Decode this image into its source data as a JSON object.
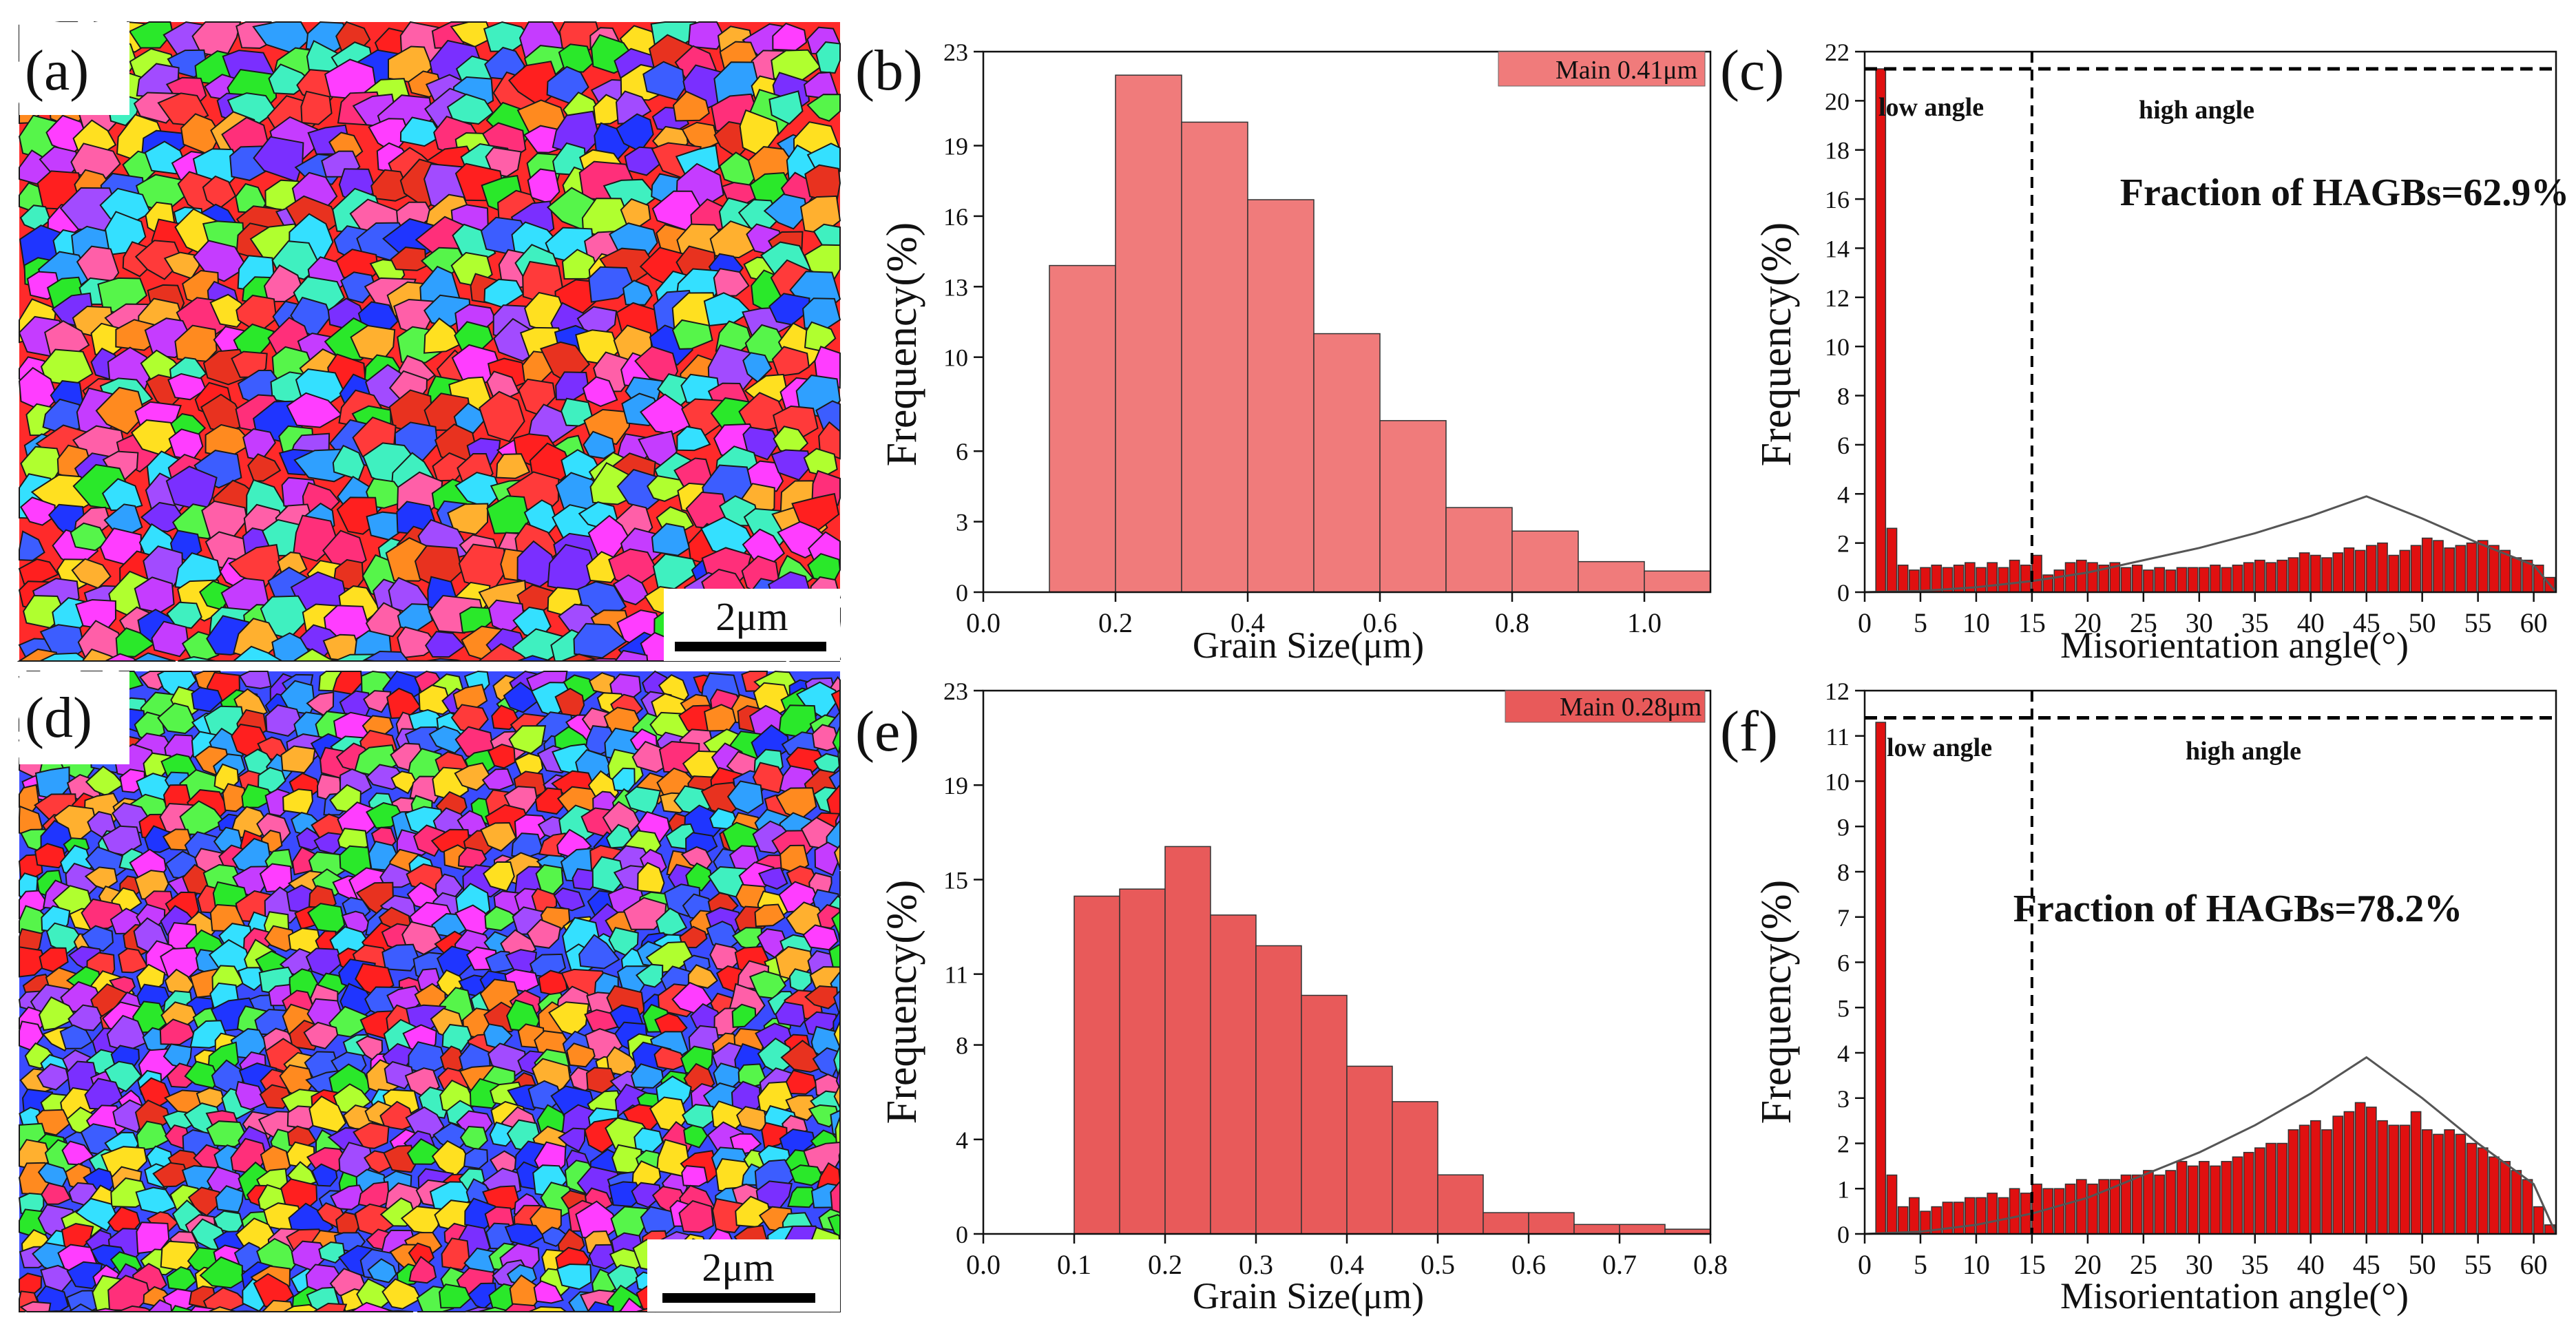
{
  "colors": {
    "bar_b": "#f07b7b",
    "bar_e": "#e85a5a",
    "bar_misorientation": "#e01010",
    "bar_stroke": "#333333",
    "axis": "#111111",
    "mackenzie_curve": "#555555",
    "ipf_palette": [
      "#ff1f1f",
      "#ff3a3a",
      "#e8321f",
      "#2ae82a",
      "#56f54a",
      "#1f35ff",
      "#3c5dff",
      "#ff3dff",
      "#c53cff",
      "#ffe020",
      "#ff8a1f",
      "#34e0ff",
      "#a24bff",
      "#ff5fa8",
      "#ffb02f",
      "#3ff0c0",
      "#ff2f7a",
      "#7a2fff",
      "#2fa0ff",
      "#b0ff2f"
    ]
  },
  "maps": [
    {
      "id": "a",
      "panel_label": "(a)",
      "scale_bar": "2μm"
    },
    {
      "id": "d",
      "panel_label": "(d)",
      "scale_bar": "2μm"
    }
  ],
  "chart_data": [
    {
      "id": "b",
      "panel_label": "(b)",
      "type": "bar",
      "title": "",
      "xlabel": "Grain Size(μm)",
      "ylabel": "Frequency(%)",
      "xlim": [
        0,
        1.1
      ],
      "ylim": [
        0,
        23
      ],
      "xticks": [
        0.0,
        0.2,
        0.4,
        0.6,
        0.8,
        1.0
      ],
      "xtick_labels": [
        "0.0",
        "0.2",
        "0.4",
        "0.6",
        "0.8",
        "1.0"
      ],
      "yticks": [
        0,
        3,
        6,
        10,
        13,
        16,
        19,
        23
      ],
      "ytick_labels": [
        "0",
        "3",
        "6",
        "10",
        "13",
        "16",
        "19",
        "23"
      ],
      "bin_width": 0.1,
      "bins_left": [
        0.0,
        0.1,
        0.2,
        0.3,
        0.4,
        0.5,
        0.6,
        0.7,
        0.8,
        0.9,
        1.0
      ],
      "values": [
        0,
        13.9,
        22.0,
        20.0,
        16.7,
        11.0,
        7.3,
        3.6,
        2.6,
        1.3,
        0.9
      ],
      "legend": "Main 0.41μm",
      "legend_position": "top-right"
    },
    {
      "id": "e",
      "panel_label": "(e)",
      "type": "bar",
      "title": "",
      "xlabel": "Grain Size(μm)",
      "ylabel": "Frequency(%)",
      "xlim": [
        0,
        0.8
      ],
      "ylim": [
        0,
        23
      ],
      "xticks": [
        0.0,
        0.1,
        0.2,
        0.3,
        0.4,
        0.5,
        0.6,
        0.7,
        0.8
      ],
      "xtick_labels": [
        "0.0",
        "0.1",
        "0.2",
        "0.3",
        "0.4",
        "0.5",
        "0.6",
        "0.7",
        "0.8"
      ],
      "yticks": [
        0,
        4,
        8,
        11,
        15,
        19,
        23
      ],
      "ytick_labels": [
        "0",
        "4",
        "8",
        "11",
        "15",
        "19",
        "23"
      ],
      "bin_width": 0.05,
      "bins_left": [
        0.1,
        0.15,
        0.2,
        0.25,
        0.3,
        0.35,
        0.4,
        0.45,
        0.5,
        0.55,
        0.6,
        0.65,
        0.7,
        0.75
      ],
      "values": [
        14.3,
        14.6,
        16.4,
        13.5,
        12.2,
        10.1,
        7.1,
        5.6,
        2.5,
        0.9,
        0.9,
        0.4,
        0.4,
        0.2
      ],
      "legend": "Main 0.28μm",
      "legend_position": "top-right"
    },
    {
      "id": "c",
      "panel_label": "(c)",
      "type": "bar",
      "title": "",
      "xlabel": "Misorientation angle(°)",
      "ylabel": "Frequency(%)",
      "xlim": [
        0,
        62
      ],
      "ylim": [
        0,
        22
      ],
      "xticks": [
        0,
        5,
        10,
        15,
        20,
        25,
        30,
        35,
        40,
        45,
        50,
        55,
        60
      ],
      "xtick_labels": [
        "0",
        "5",
        "10",
        "15",
        "20",
        "25",
        "30",
        "35",
        "40",
        "45",
        "50",
        "55",
        "60"
      ],
      "yticks": [
        0,
        2,
        4,
        6,
        8,
        10,
        12,
        14,
        16,
        18,
        20,
        22
      ],
      "ytick_labels": [
        "0",
        "2",
        "4",
        "6",
        "8",
        "10",
        "12",
        "14",
        "16",
        "18",
        "20",
        "22"
      ],
      "bin_width": 1,
      "bins_left": [
        1,
        2,
        3,
        4,
        5,
        6,
        7,
        8,
        9,
        10,
        11,
        12,
        13,
        14,
        15,
        16,
        17,
        18,
        19,
        20,
        21,
        22,
        23,
        24,
        25,
        26,
        27,
        28,
        29,
        30,
        31,
        32,
        33,
        34,
        35,
        36,
        37,
        38,
        39,
        40,
        41,
        42,
        43,
        44,
        45,
        46,
        47,
        48,
        49,
        50,
        51,
        52,
        53,
        54,
        55,
        56,
        57,
        58,
        59,
        60,
        61
      ],
      "values": [
        21.3,
        2.6,
        1.1,
        0.9,
        1.0,
        1.1,
        1.0,
        1.1,
        1.2,
        1.0,
        1.2,
        1.0,
        1.3,
        1.1,
        1.5,
        0.7,
        0.9,
        1.2,
        1.3,
        1.2,
        1.1,
        1.2,
        1.0,
        1.1,
        0.9,
        1.0,
        0.9,
        1.0,
        1.0,
        1.0,
        1.1,
        1.0,
        1.1,
        1.2,
        1.3,
        1.2,
        1.3,
        1.4,
        1.6,
        1.5,
        1.4,
        1.6,
        1.8,
        1.7,
        1.9,
        2.0,
        1.5,
        1.7,
        1.9,
        2.2,
        2.1,
        1.8,
        1.9,
        2.0,
        2.1,
        1.9,
        1.7,
        1.4,
        1.3,
        1.1,
        0.6
      ],
      "mackenzie_curve": {
        "x": [
          0,
          5,
          10,
          15,
          20,
          25,
          30,
          35,
          40,
          45,
          50,
          55,
          60,
          62
        ],
        "y": [
          0,
          0.05,
          0.2,
          0.45,
          0.8,
          1.3,
          1.8,
          2.4,
          3.1,
          3.9,
          3.0,
          2.0,
          1.1,
          0
        ]
      },
      "threshold_angle": 15,
      "reference_value": 21.3,
      "annotations": [
        "low angle",
        "high angle",
        "Fraction of HAGBs=62.9%"
      ]
    },
    {
      "id": "f",
      "panel_label": "(f)",
      "type": "bar",
      "title": "",
      "xlabel": "Misorientation angle(°)",
      "ylabel": "Frequency(%)",
      "xlim": [
        0,
        62
      ],
      "ylim": [
        0,
        12
      ],
      "xticks": [
        0,
        5,
        10,
        15,
        20,
        25,
        30,
        35,
        40,
        45,
        50,
        55,
        60
      ],
      "xtick_labels": [
        "0",
        "5",
        "10",
        "15",
        "20",
        "25",
        "30",
        "35",
        "40",
        "45",
        "50",
        "55",
        "60"
      ],
      "yticks": [
        0,
        1,
        2,
        3,
        4,
        5,
        6,
        7,
        8,
        9,
        10,
        11,
        12
      ],
      "ytick_labels": [
        "0",
        "1",
        "2",
        "3",
        "4",
        "5",
        "6",
        "7",
        "8",
        "9",
        "10",
        "11",
        "12"
      ],
      "bin_width": 1,
      "bins_left": [
        1,
        2,
        3,
        4,
        5,
        6,
        7,
        8,
        9,
        10,
        11,
        12,
        13,
        14,
        15,
        16,
        17,
        18,
        19,
        20,
        21,
        22,
        23,
        24,
        25,
        26,
        27,
        28,
        29,
        30,
        31,
        32,
        33,
        34,
        35,
        36,
        37,
        38,
        39,
        40,
        41,
        42,
        43,
        44,
        45,
        46,
        47,
        48,
        49,
        50,
        51,
        52,
        53,
        54,
        55,
        56,
        57,
        58,
        59,
        60,
        61
      ],
      "values": [
        11.3,
        1.3,
        0.6,
        0.8,
        0.5,
        0.6,
        0.7,
        0.7,
        0.8,
        0.8,
        0.9,
        0.8,
        1.0,
        0.9,
        1.1,
        1.0,
        1.0,
        1.1,
        1.2,
        1.1,
        1.2,
        1.2,
        1.3,
        1.3,
        1.4,
        1.3,
        1.4,
        1.6,
        1.5,
        1.6,
        1.5,
        1.6,
        1.7,
        1.8,
        1.9,
        2.0,
        2.0,
        2.3,
        2.4,
        2.5,
        2.3,
        2.6,
        2.7,
        2.9,
        2.8,
        2.5,
        2.4,
        2.4,
        2.7,
        2.3,
        2.2,
        2.3,
        2.2,
        2.0,
        1.9,
        1.7,
        1.6,
        1.4,
        1.2,
        0.6,
        0.2
      ],
      "mackenzie_curve": {
        "x": [
          0,
          5,
          10,
          15,
          20,
          25,
          30,
          35,
          40,
          45,
          50,
          55,
          60,
          62
        ],
        "y": [
          0,
          0.05,
          0.2,
          0.45,
          0.8,
          1.3,
          1.8,
          2.4,
          3.1,
          3.9,
          3.0,
          2.0,
          1.1,
          0
        ]
      },
      "threshold_angle": 15,
      "reference_value": 11.4,
      "annotations": [
        "low angle",
        "high angle",
        "Fraction of HAGBs=78.2%"
      ]
    }
  ]
}
